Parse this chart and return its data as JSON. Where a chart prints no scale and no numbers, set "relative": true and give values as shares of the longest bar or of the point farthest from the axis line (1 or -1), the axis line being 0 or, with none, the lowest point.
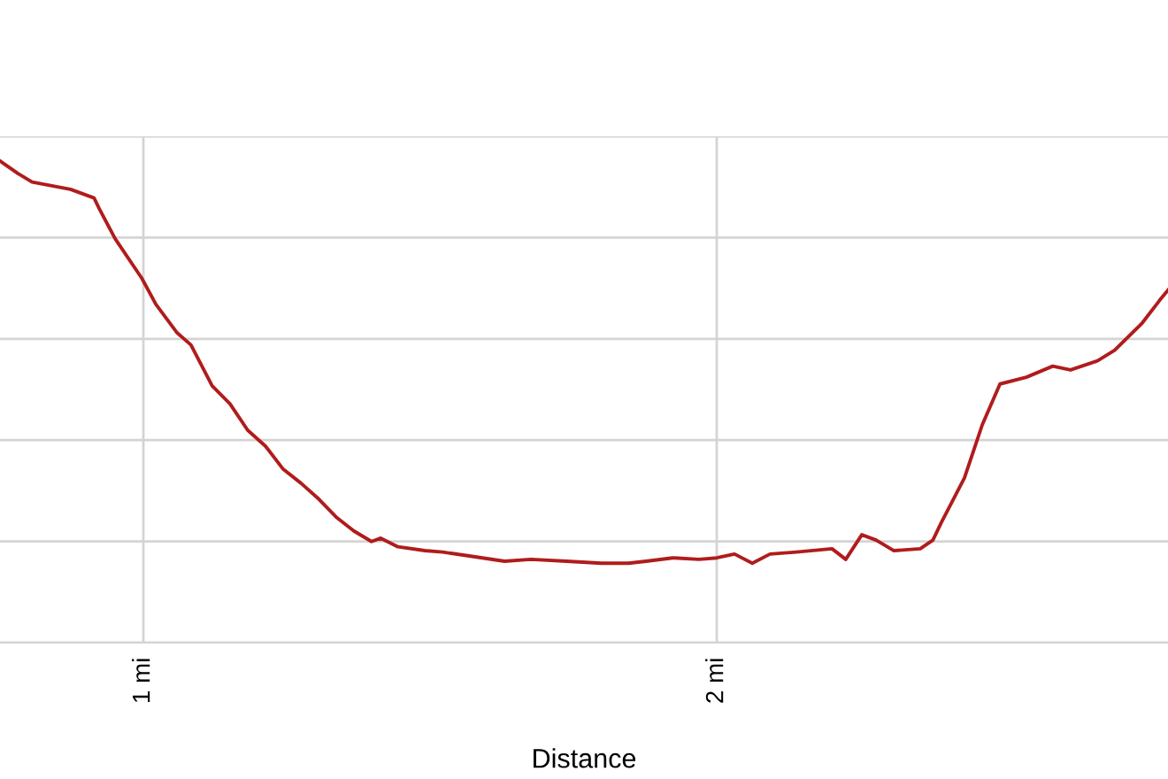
{
  "chart_data": {
    "type": "line",
    "relative": true,
    "xlabel": "Distance",
    "xlim": [
      0.75,
      2.787
    ],
    "xticks": [
      {
        "value": 1,
        "label": "1 mi"
      },
      {
        "value": 2,
        "label": "2 mi"
      }
    ],
    "grid": true,
    "marker": "none",
    "line_style": "solid",
    "series": [
      {
        "color": "#b01c1c",
        "x": [
          0.75,
          0.781,
          0.806,
          0.873,
          0.914,
          0.923,
          0.951,
          0.997,
          1.022,
          1.059,
          1.083,
          1.12,
          1.151,
          1.182,
          1.213,
          1.244,
          1.275,
          1.306,
          1.336,
          1.367,
          1.398,
          1.414,
          1.444,
          1.491,
          1.522,
          1.568,
          1.63,
          1.676,
          1.738,
          1.799,
          1.846,
          1.877,
          1.923,
          1.969,
          2.0,
          2.031,
          2.062,
          2.093,
          2.139,
          2.201,
          2.225,
          2.253,
          2.278,
          2.309,
          2.355,
          2.377,
          2.392,
          2.432,
          2.463,
          2.494,
          2.54,
          2.586,
          2.617,
          2.664,
          2.694,
          2.741,
          2.772,
          2.787
        ],
        "values": [
          1,
          0.974,
          0.956,
          0.941,
          0.923,
          0.901,
          0.838,
          0.757,
          0.702,
          0.643,
          0.618,
          0.533,
          0.496,
          0.441,
          0.408,
          0.36,
          0.331,
          0.298,
          0.261,
          0.232,
          0.21,
          0.217,
          0.199,
          0.191,
          0.188,
          0.18,
          0.169,
          0.173,
          0.169,
          0.165,
          0.165,
          0.169,
          0.176,
          0.173,
          0.176,
          0.184,
          0.165,
          0.184,
          0.188,
          0.195,
          0.173,
          0.224,
          0.213,
          0.191,
          0.195,
          0.213,
          0.25,
          0.342,
          0.452,
          0.537,
          0.551,
          0.574,
          0.566,
          0.585,
          0.607,
          0.662,
          0.71,
          0.732
        ]
      }
    ]
  }
}
